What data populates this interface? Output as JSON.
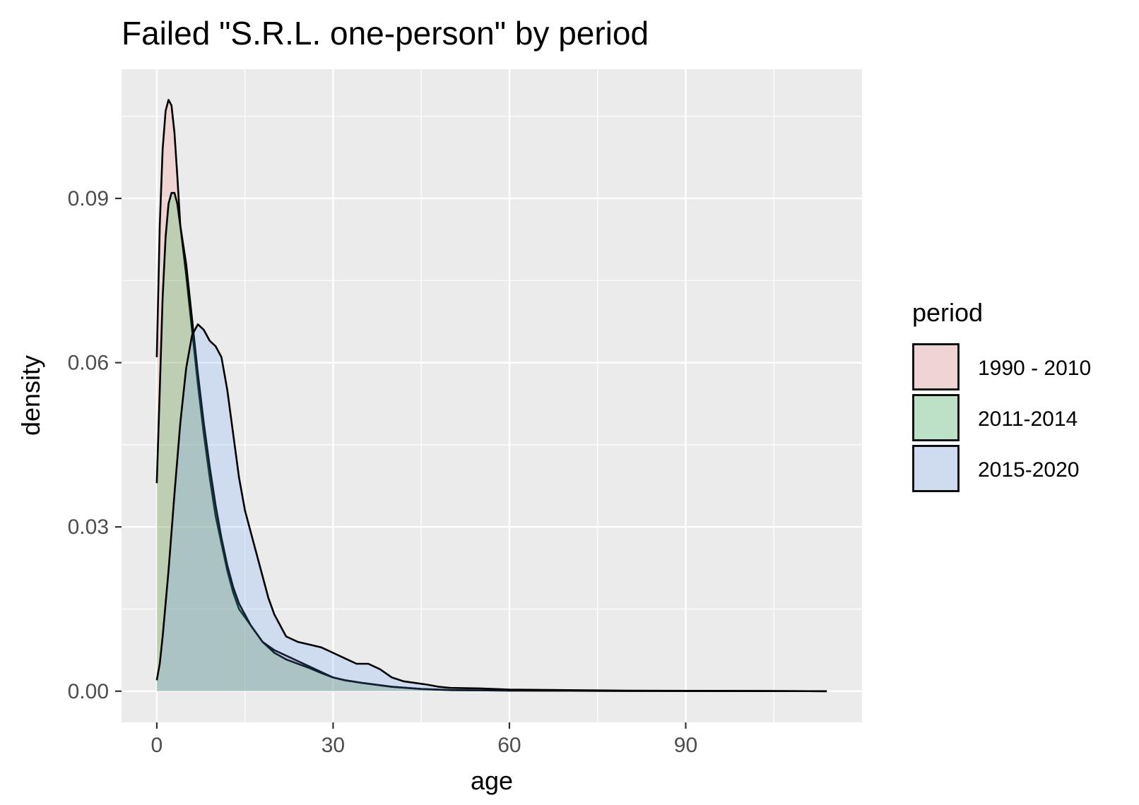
{
  "chart_data": {
    "type": "area",
    "title": "Failed \"S.R.L. one-person\" by period",
    "xlabel": "age",
    "ylabel": "density",
    "xlim": [
      -6,
      120
    ],
    "ylim": [
      -0.0057,
      0.1136
    ],
    "x_ticks": [
      0,
      30,
      60,
      90
    ],
    "x_tick_labels": [
      "0",
      "30",
      "60",
      "90"
    ],
    "y_ticks": [
      0.0,
      0.03,
      0.06,
      0.09
    ],
    "y_tick_labels": [
      "0.00",
      "0.03",
      "0.06",
      "0.09"
    ],
    "grid": true,
    "legend_position": "right",
    "legend_title": "period",
    "series": [
      {
        "name": "1990 - 2010",
        "fill": "#f8766d",
        "points": [
          [
            0,
            0.061
          ],
          [
            0.5,
            0.085
          ],
          [
            1,
            0.099
          ],
          [
            1.5,
            0.106
          ],
          [
            2,
            0.108
          ],
          [
            2.5,
            0.107
          ],
          [
            3,
            0.102
          ],
          [
            3.5,
            0.094
          ],
          [
            4,
            0.085
          ],
          [
            5,
            0.076
          ],
          [
            6,
            0.066
          ],
          [
            7,
            0.056
          ],
          [
            8,
            0.047
          ],
          [
            9,
            0.039
          ],
          [
            10,
            0.032
          ],
          [
            11,
            0.027
          ],
          [
            12,
            0.022
          ],
          [
            13,
            0.018
          ],
          [
            14,
            0.015
          ],
          [
            16,
            0.012
          ],
          [
            18,
            0.009
          ],
          [
            20,
            0.0075
          ],
          [
            22,
            0.0065
          ],
          [
            24,
            0.0055
          ],
          [
            26,
            0.0045
          ],
          [
            28,
            0.0035
          ],
          [
            30,
            0.0025
          ],
          [
            32,
            0.002
          ],
          [
            35,
            0.0015
          ],
          [
            40,
            0.0008
          ],
          [
            45,
            0.0004
          ],
          [
            50,
            0.0002
          ],
          [
            60,
            0.0001
          ],
          [
            80,
            5e-05
          ],
          [
            100,
            2e-05
          ],
          [
            114,
            0.0
          ]
        ]
      },
      {
        "name": "2011-2014",
        "fill": "#00ba38",
        "points": [
          [
            0,
            0.038
          ],
          [
            0.5,
            0.055
          ],
          [
            1,
            0.072
          ],
          [
            1.5,
            0.083
          ],
          [
            2,
            0.089
          ],
          [
            2.5,
            0.091
          ],
          [
            3,
            0.091
          ],
          [
            3.5,
            0.089
          ],
          [
            4,
            0.085
          ],
          [
            5,
            0.078
          ],
          [
            6,
            0.068
          ],
          [
            7,
            0.058
          ],
          [
            8,
            0.049
          ],
          [
            9,
            0.041
          ],
          [
            10,
            0.034
          ],
          [
            11,
            0.028
          ],
          [
            12,
            0.023
          ],
          [
            13,
            0.019
          ],
          [
            14,
            0.016
          ],
          [
            16,
            0.012
          ],
          [
            18,
            0.009
          ],
          [
            20,
            0.007
          ],
          [
            22,
            0.0058
          ],
          [
            24,
            0.005
          ],
          [
            26,
            0.0042
          ],
          [
            28,
            0.0033
          ],
          [
            30,
            0.0025
          ],
          [
            32,
            0.002
          ],
          [
            35,
            0.0015
          ],
          [
            40,
            0.0008
          ],
          [
            45,
            0.0004
          ],
          [
            50,
            0.0002
          ],
          [
            60,
            0.0001
          ],
          [
            80,
            5e-05
          ],
          [
            100,
            2e-05
          ],
          [
            114,
            0.0
          ]
        ]
      },
      {
        "name": "2015-2020",
        "fill": "#619cff",
        "points": [
          [
            0,
            0.002
          ],
          [
            0.5,
            0.005
          ],
          [
            1,
            0.01
          ],
          [
            2,
            0.022
          ],
          [
            3,
            0.036
          ],
          [
            4,
            0.049
          ],
          [
            5,
            0.059
          ],
          [
            6,
            0.065
          ],
          [
            7,
            0.067
          ],
          [
            8,
            0.066
          ],
          [
            9,
            0.064
          ],
          [
            10,
            0.063
          ],
          [
            11,
            0.061
          ],
          [
            12,
            0.055
          ],
          [
            13,
            0.047
          ],
          [
            14,
            0.039
          ],
          [
            15,
            0.033
          ],
          [
            16,
            0.029
          ],
          [
            17,
            0.025
          ],
          [
            18,
            0.021
          ],
          [
            19,
            0.017
          ],
          [
            20,
            0.014
          ],
          [
            21,
            0.012
          ],
          [
            22,
            0.01
          ],
          [
            24,
            0.009
          ],
          [
            26,
            0.0085
          ],
          [
            28,
            0.008
          ],
          [
            30,
            0.007
          ],
          [
            32,
            0.006
          ],
          [
            34,
            0.005
          ],
          [
            36,
            0.005
          ],
          [
            38,
            0.004
          ],
          [
            40,
            0.0025
          ],
          [
            42,
            0.0018
          ],
          [
            44,
            0.0015
          ],
          [
            46,
            0.0012
          ],
          [
            48,
            0.0008
          ],
          [
            50,
            0.0006
          ],
          [
            55,
            0.0005
          ],
          [
            60,
            0.0003
          ],
          [
            70,
            0.0002
          ],
          [
            80,
            0.0001
          ],
          [
            100,
            3e-05
          ],
          [
            114,
            0.0
          ]
        ]
      }
    ]
  }
}
